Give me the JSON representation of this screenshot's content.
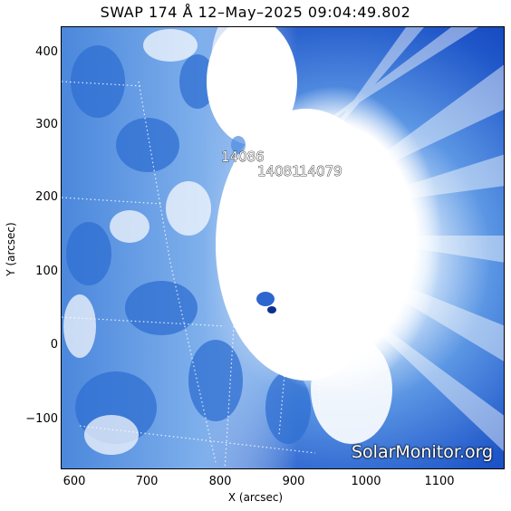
{
  "title": "SWAP 174 Å 12–May–2025 09:04:49.802",
  "axes": {
    "xlabel": "X (arcsec)",
    "ylabel": "Y (arcsec)",
    "xticks": [
      "600",
      "700",
      "800",
      "900",
      "1000",
      "1100"
    ],
    "yticks": [
      "400",
      "300",
      "200",
      "100",
      "0",
      "−100"
    ]
  },
  "active_regions": {
    "ar1": "14086",
    "ar2": "14081",
    "ar3": "14079"
  },
  "watermark": "SolarMonitor.org",
  "colors": {
    "dark_blue": "#0a3db8",
    "mid_blue": "#3f7fd9",
    "light_blue": "#a9cdf4",
    "white": "#ffffff"
  }
}
